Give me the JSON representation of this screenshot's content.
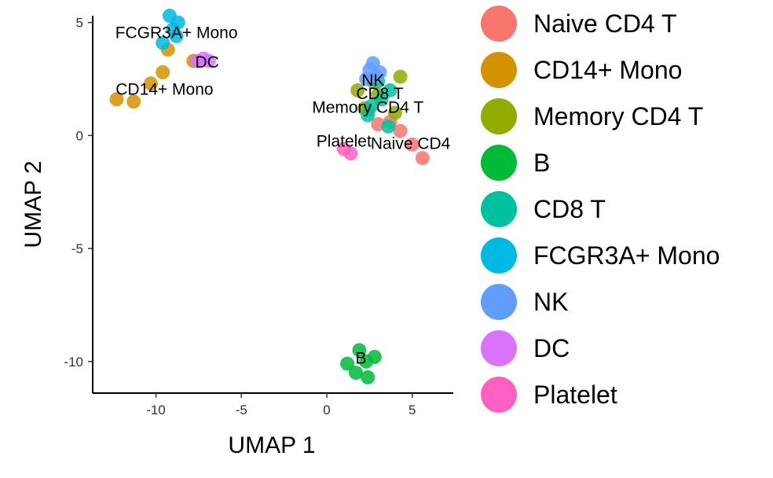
{
  "chart_data": {
    "type": "scatter",
    "title": "",
    "xlabel": "UMAP 1",
    "ylabel": "UMAP 2",
    "xlim": [
      -13.7,
      7.4
    ],
    "ylim": [
      -11.4,
      5.3
    ],
    "xticks": [
      -10,
      -5,
      0,
      5
    ],
    "yticks": [
      5,
      0,
      -5,
      -10
    ],
    "xtick_labels": [
      "-10",
      "-5",
      "0",
      "5"
    ],
    "ytick_labels": [
      "5",
      "0",
      "-5",
      "-10"
    ],
    "grid": false,
    "legend_position": "right",
    "series": [
      {
        "name": "Naive CD4 T",
        "color": "#F8766D",
        "x": [
          5.0,
          4.3,
          3.7,
          5.6,
          3.0,
          2.4
        ],
        "y": [
          -0.4,
          0.2,
          0.6,
          -1.0,
          0.5,
          1.1
        ]
      },
      {
        "name": "CD14+ Mono",
        "color": "#D39200",
        "x": [
          -12.3,
          -11.3,
          -10.3,
          -9.6,
          -9.3,
          -7.8
        ],
        "y": [
          1.6,
          1.5,
          2.3,
          2.8,
          3.8,
          3.3
        ]
      },
      {
        "name": "Memory CD4 T",
        "color": "#93AA00",
        "x": [
          2.2,
          3.0,
          4.0,
          4.3,
          1.8,
          2.7
        ],
        "y": [
          1.2,
          1.8,
          1.0,
          2.6,
          2.0,
          2.4
        ]
      },
      {
        "name": "B",
        "color": "#00BA38",
        "x": [
          1.2,
          1.7,
          2.3,
          2.8,
          1.9,
          2.4
        ],
        "y": [
          -10.1,
          -10.5,
          -10.0,
          -9.8,
          -9.5,
          -10.7
        ]
      },
      {
        "name": "CD8 T",
        "color": "#00C19F",
        "x": [
          2.6,
          3.2,
          3.7,
          3.0,
          2.4,
          3.6
        ],
        "y": [
          1.3,
          1.6,
          2.0,
          2.4,
          0.9,
          0.4
        ]
      },
      {
        "name": "FCGR3A+ Mono",
        "color": "#00B9E3",
        "x": [
          -9.6,
          -9.0,
          -8.7,
          -9.2,
          -8.8
        ],
        "y": [
          4.1,
          4.7,
          5.0,
          5.3,
          4.4
        ]
      },
      {
        "name": "NK",
        "color": "#619CFF",
        "x": [
          2.3,
          2.7,
          3.1,
          2.5,
          2.9
        ],
        "y": [
          2.5,
          3.2,
          2.8,
          2.9,
          2.6
        ]
      },
      {
        "name": "DC",
        "color": "#DB72FB",
        "x": [
          -7.6,
          -7.2,
          -6.9
        ],
        "y": [
          3.3,
          3.4,
          3.3
        ]
      },
      {
        "name": "Platelet",
        "color": "#FF61C3",
        "x": [
          1.0,
          1.4
        ],
        "y": [
          -0.6,
          -0.8
        ]
      }
    ],
    "annotations": [
      {
        "text": "FCGR3A+ Mono",
        "x": -8.8,
        "y": 4.5
      },
      {
        "text": "DC",
        "x": -7.0,
        "y": 3.2
      },
      {
        "text": "CD14+ Mono",
        "x": -9.5,
        "y": 2.0
      },
      {
        "text": "NK",
        "x": 2.7,
        "y": 2.4
      },
      {
        "text": "CD8 T",
        "x": 3.1,
        "y": 1.8
      },
      {
        "text": "Memory CD4 T",
        "x": 2.4,
        "y": 1.2
      },
      {
        "text": "Platelet",
        "x": 1.0,
        "y": -0.3
      },
      {
        "text": "Naive CD4",
        "x": 4.9,
        "y": -0.4
      },
      {
        "text": "B",
        "x": 2.0,
        "y": -9.9
      }
    ]
  }
}
